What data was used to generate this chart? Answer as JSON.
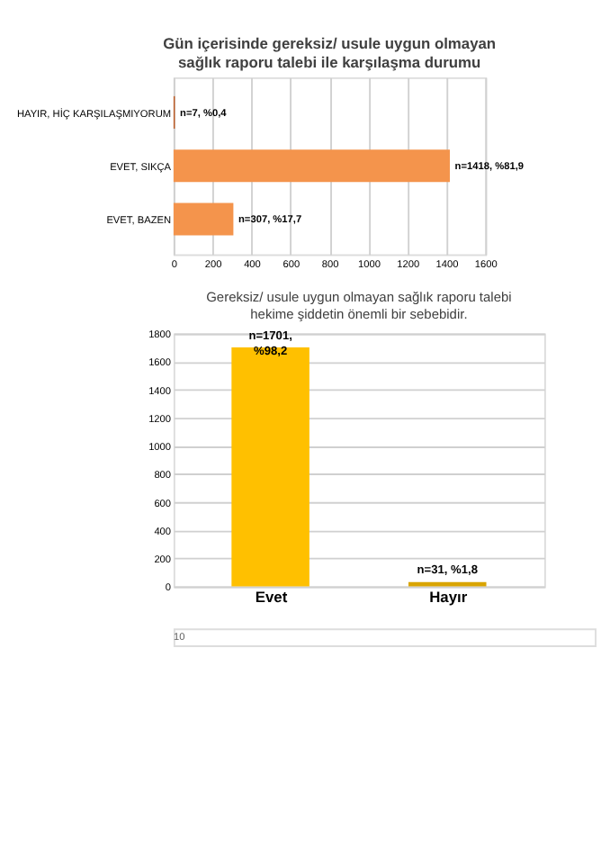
{
  "chart_data": [
    {
      "type": "bar",
      "orientation": "horizontal",
      "title": "Gün içerisinde gereksiz/ usule uygun olmayan\nsağlık raporu talebi ile karşılaşma durumu",
      "categories": [
        "HAYIR, HİÇ KARŞILAŞMIYORUM",
        "EVET, SIKÇA",
        "EVET, BAZEN"
      ],
      "values": [
        7,
        1418,
        307
      ],
      "colors": [
        "#c0602a",
        "#f4944c",
        "#f4944c"
      ],
      "value_labels": [
        "n=7, %0,4",
        "n=1418, %81,9",
        "n=307, %17,7"
      ],
      "xlim": [
        0,
        1600
      ],
      "xticks": [
        0,
        200,
        400,
        600,
        800,
        1000,
        1200,
        1400,
        1600
      ],
      "grid": "x"
    },
    {
      "type": "bar",
      "title": "Gereksiz/ usule uygun olmayan sağlık raporu talebi\nhekime şiddetin önemli bir sebebidir.",
      "categories": [
        "Evet",
        "Hayır"
      ],
      "values": [
        1701,
        31
      ],
      "colors": [
        "#ffc000",
        "#d9a400"
      ],
      "value_labels": [
        "n=1701,\n%98,2",
        "n=31, %1,8"
      ],
      "ylim": [
        0,
        1800
      ],
      "yticks": [
        0,
        200,
        400,
        600,
        800,
        1000,
        1200,
        1400,
        1600,
        1800
      ],
      "grid": "y",
      "annotations": [
        "10"
      ]
    }
  ]
}
